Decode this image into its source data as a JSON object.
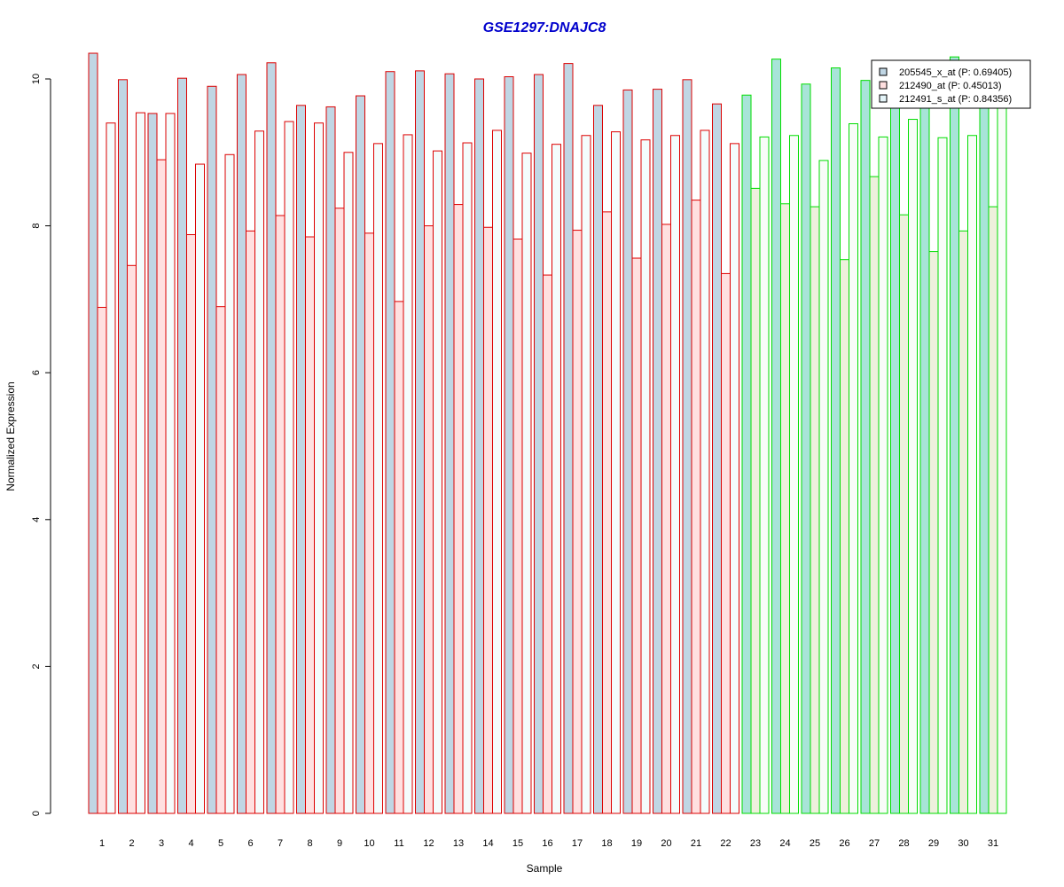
{
  "chart_data": {
    "type": "bar",
    "title": "GSE1297:DNAJC8",
    "xlabel": "Sample",
    "ylabel": "Normalized Expression",
    "ylim": [
      0,
      10.4
    ],
    "yticks": [
      0,
      2,
      4,
      6,
      8,
      10
    ],
    "categories": [
      "1",
      "2",
      "3",
      "4",
      "5",
      "6",
      "7",
      "8",
      "9",
      "10",
      "11",
      "12",
      "13",
      "14",
      "15",
      "16",
      "17",
      "18",
      "19",
      "20",
      "21",
      "22",
      "23",
      "24",
      "25",
      "26",
      "27",
      "28",
      "29",
      "30",
      "31"
    ],
    "groups": [
      {
        "first": 1,
        "last": 22,
        "border_color": "#dd0000"
      },
      {
        "first": 23,
        "last": 31,
        "border_color": "#00dd00"
      }
    ],
    "series": [
      {
        "name": "205545_x_at (P: 0.69405)",
        "fill_red_group": "#c0d6e4",
        "fill_green_group": "#a8e4d8",
        "values": [
          10.35,
          9.99,
          9.53,
          10.01,
          9.9,
          10.06,
          10.22,
          9.64,
          9.62,
          9.77,
          10.1,
          10.11,
          10.07,
          10.0,
          10.03,
          10.06,
          10.21,
          9.64,
          9.85,
          9.86,
          9.99,
          9.66,
          9.78,
          10.27,
          9.93,
          10.15,
          9.98,
          9.7,
          9.7,
          10.3,
          9.7
        ]
      },
      {
        "name": "212490_at (P: 0.45013)",
        "fill_red_group": "#ffe0e0",
        "fill_green_group": "#eef0dc",
        "values": [
          6.89,
          7.46,
          8.9,
          7.88,
          6.9,
          7.93,
          8.14,
          7.85,
          8.24,
          7.9,
          6.97,
          8.0,
          8.29,
          7.98,
          7.82,
          7.33,
          7.94,
          8.19,
          7.56,
          8.02,
          8.35,
          7.35,
          8.51,
          8.3,
          8.26,
          7.54,
          8.67,
          8.15,
          7.65,
          7.93,
          8.26
        ]
      },
      {
        "name": "212491_s_at (P: 0.84356)",
        "fill_red_group": "#f4fcfc",
        "fill_green_group": "#f8fcf8",
        "values": [
          9.4,
          9.54,
          9.53,
          8.84,
          8.97,
          9.29,
          9.42,
          9.4,
          9.0,
          9.12,
          9.24,
          9.02,
          9.13,
          9.3,
          8.99,
          9.11,
          9.23,
          9.28,
          9.17,
          9.23,
          9.3,
          9.12,
          9.21,
          9.23,
          8.89,
          9.39,
          9.21,
          9.45,
          9.2,
          9.23,
          9.65
        ]
      }
    ],
    "legend": {
      "placement": "top-right",
      "entries": [
        {
          "label": "205545_x_at (P: 0.69405)",
          "swatch": "#c0d6e4"
        },
        {
          "label": "212490_at (P: 0.45013)",
          "swatch": "#ffe0e0"
        },
        {
          "label": "212491_s_at (P: 0.84356)",
          "swatch": "#e4f4f8"
        }
      ]
    },
    "grid": false
  }
}
